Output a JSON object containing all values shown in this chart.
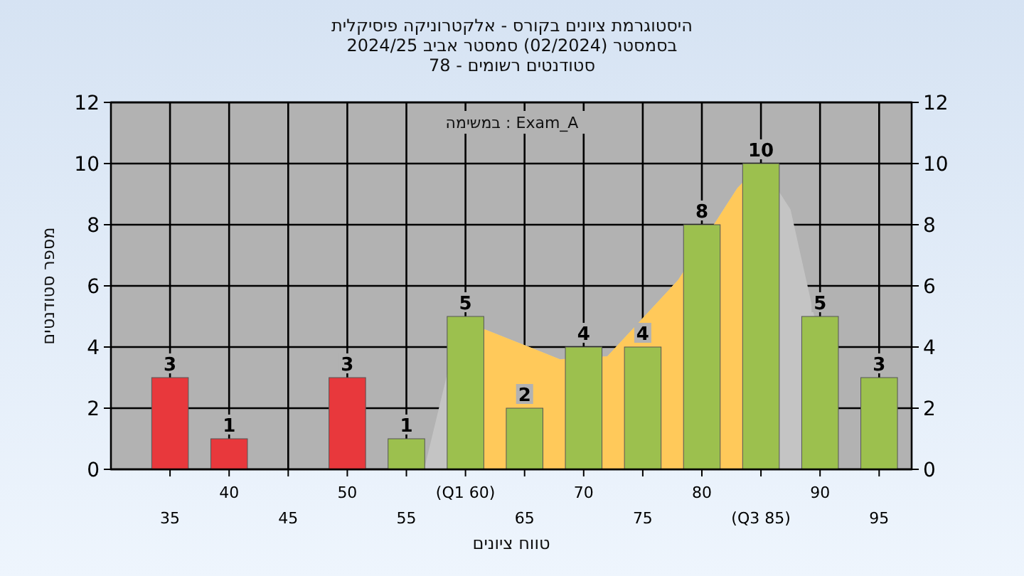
{
  "chart_data": {
    "type": "bar",
    "title": "היסטוגרמת ציונים בקורס - אלקטרוניקה פיסיקלית",
    "subtitle": "בסמסטר  (02/2024)  סמסטר אביב 2024/25\nסטודנטים רשומים - 78",
    "xlabel": "טווח ציונים",
    "ylabel": "מספר סטודנטים",
    "annotations": [
      "במשימה : Exam_A"
    ],
    "categories": [
      "35",
      "40",
      "45",
      "50",
      "55",
      "(Q1 60)",
      "65",
      "70",
      "75",
      "80",
      "(Q3 85)",
      "90",
      "95"
    ],
    "series": [
      {
        "type": "bar",
        "colors": [
          "#e8383c",
          "#e8383c",
          "#e8383c",
          "#e8383c",
          "#9cc04e",
          "#9cc04e",
          "#9cc04e",
          "#9cc04e",
          "#9cc04e",
          "#9cc04e",
          "#9cc04e",
          "#9cc04e",
          "#9cc04e"
        ],
        "values": [
          3,
          1,
          0,
          3,
          1,
          5,
          2,
          4,
          4,
          8,
          10,
          5,
          3
        ],
        "value_labels": [
          "3",
          "1",
          null,
          "3",
          "1",
          "5",
          "2",
          "4",
          "4",
          "8",
          "10",
          "5",
          "3"
        ]
      }
    ],
    "ylim": [
      0,
      12
    ],
    "yticks": [
      0,
      2,
      4,
      6,
      8,
      10,
      12
    ],
    "y2lim": [
      0,
      12
    ],
    "y2ticks": [
      0,
      2,
      4,
      6,
      8,
      10,
      12
    ],
    "grid": true
  }
}
